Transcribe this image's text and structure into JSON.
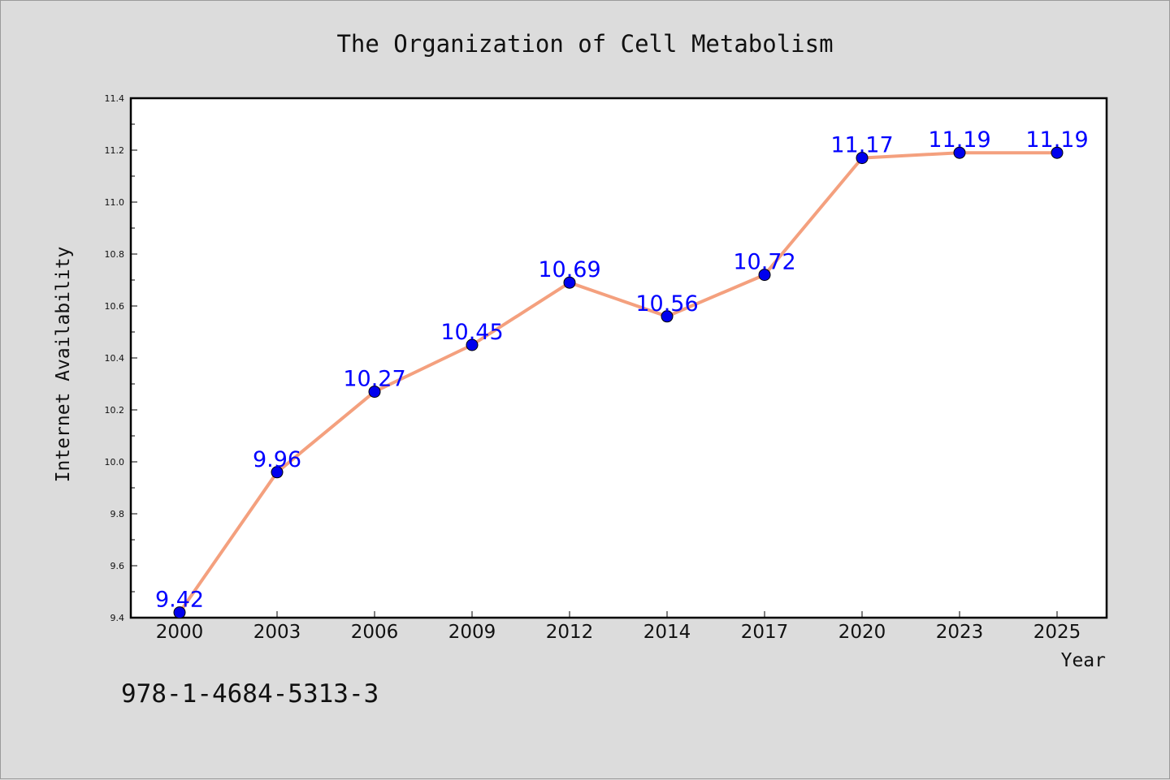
{
  "chart_data": {
    "type": "line",
    "title": "The Organization of Cell Metabolism",
    "xlabel": "Year",
    "ylabel": "Internet Availability",
    "categories": [
      "2000",
      "2003",
      "2006",
      "2009",
      "2012",
      "2014",
      "2017",
      "2020",
      "2023",
      "2025"
    ],
    "series": [
      {
        "values": [
          9.42,
          9.96,
          10.27,
          10.45,
          10.69,
          10.56,
          10.72,
          11.17,
          11.19,
          11.19
        ]
      }
    ],
    "data_labels": [
      "9.42",
      "9.96",
      "10.27",
      "10.45",
      "10.69",
      "10.56",
      "10.72",
      "11.17",
      "11.19",
      "11.19"
    ],
    "ylim": [
      9.4,
      11.4
    ],
    "yticks": [
      "9.4",
      "9.6",
      "9.8",
      "10.0",
      "10.2",
      "10.4",
      "10.6",
      "10.8",
      "11.0",
      "11.2",
      "11.4"
    ],
    "grid": false,
    "legend": "none",
    "line_color": "#f4a07e",
    "marker_color": "#0000ee",
    "label_color": "#0000ff",
    "axes_background": "#ffffff",
    "figure_background": "#dcdcdc"
  },
  "annotation": {
    "isbn": "978-1-4684-5313-3"
  }
}
